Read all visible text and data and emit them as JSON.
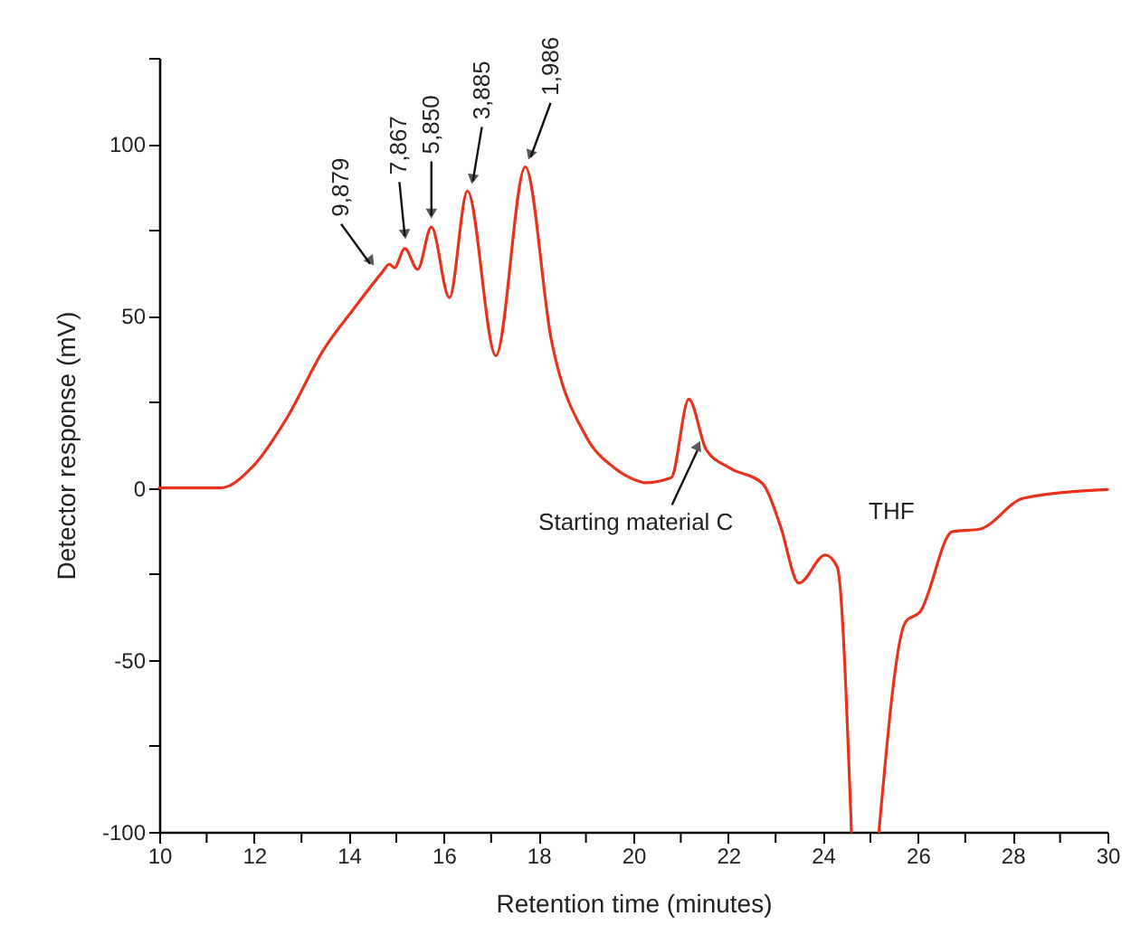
{
  "chart_data": {
    "type": "line",
    "xlabel": "Retention time (minutes)",
    "ylabel": "Detector response (mV)",
    "xlim": [
      10,
      30
    ],
    "ylim": [
      -100,
      125
    ],
    "xticks": [
      10,
      {
        "value": 11,
        "label": null
      },
      12,
      {
        "value": 13,
        "label": null
      },
      14,
      {
        "value": 15,
        "label": null
      },
      16,
      {
        "value": 17,
        "label": null
      },
      18,
      {
        "value": 19,
        "label": null
      },
      20,
      {
        "value": 21,
        "label": null
      },
      22,
      {
        "value": 23,
        "label": null
      },
      24,
      {
        "value": 25,
        "label": null
      },
      26,
      {
        "value": 27,
        "label": null
      },
      28,
      {
        "value": 29,
        "label": null
      },
      30
    ],
    "yticks": [
      -100,
      {
        "value": -75,
        "label": null
      },
      -50,
      {
        "value": -25,
        "label": null
      },
      0,
      {
        "value": 25,
        "label": null
      },
      50,
      {
        "value": 75,
        "label": null
      },
      100,
      {
        "value": 125,
        "label": null
      }
    ],
    "grid": false,
    "marker": "none",
    "line_style": "solid",
    "x": [
      10,
      11.3,
      11.96,
      12.7,
      13.46,
      14.1,
      14.7,
      14.85,
      14.96,
      15.18,
      15.45,
      15.74,
      16.12,
      16.5,
      17.1,
      17.72,
      18.27,
      19.0,
      19.6,
      20.1,
      20.23,
      20.8,
      21.17,
      21.54,
      22.03,
      22.73,
      23.1,
      23.49,
      24.05,
      24.3,
      24.6,
      24.9,
      25.18,
      25.74,
      26.05,
      26.73,
      27.3,
      28.23,
      30
    ],
    "series": [
      {
        "color": "#e8321e",
        "values": [
          0,
          0,
          6,
          20.5,
          40,
          52,
          62.6,
          65,
          64,
          69.6,
          63.5,
          75.8,
          55.3,
          86.3,
          38.4,
          93.3,
          43,
          15,
          5.8,
          2,
          1.5,
          3,
          25.8,
          11,
          5.8,
          1.2,
          -11,
          -27.7,
          -19.5,
          -23,
          -100,
          null,
          -100,
          -39,
          -36,
          -12.7,
          -12,
          -3,
          -0.5
        ]
      }
    ],
    "annotations": [
      {
        "text": "9,879",
        "x": 14.6,
        "y": 62
      },
      {
        "text": "7,867",
        "x": 15.18,
        "y": 70
      },
      {
        "text": "5,850",
        "x": 15.74,
        "y": 76
      },
      {
        "text": "3,885",
        "x": 16.5,
        "y": 86
      },
      {
        "text": "1,986",
        "x": 17.72,
        "y": 93
      },
      {
        "text": "Starting material C",
        "x": 21.35,
        "y": 14
      },
      "THF"
    ]
  }
}
